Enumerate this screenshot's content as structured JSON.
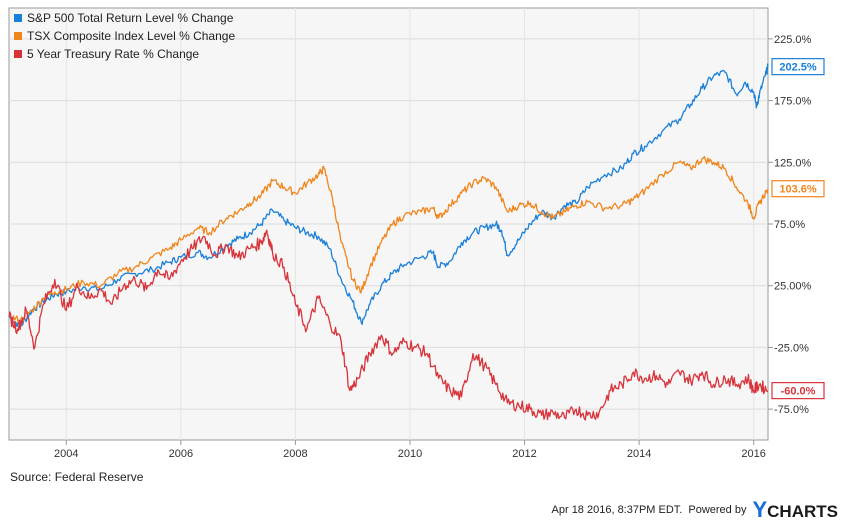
{
  "chart_data": {
    "type": "line",
    "title": "",
    "xlabel": "",
    "ylabel": "",
    "x_ticks": [
      "2004",
      "2006",
      "2008",
      "2010",
      "2012",
      "2014",
      "2016"
    ],
    "x_tick_values": [
      2004,
      2006,
      2008,
      2010,
      2012,
      2014,
      2016
    ],
    "xlim": [
      2003.0,
      2016.25
    ],
    "ylim": [
      -100,
      250
    ],
    "y_ticks": [
      "225.0%",
      "175.0%",
      "125.0%",
      "75.0%",
      "25.00%",
      "-25.0%",
      "-75.0%"
    ],
    "y_tick_values": [
      225,
      175,
      125,
      75,
      25,
      -25,
      -75
    ],
    "grid": true,
    "legend_position": "top-left",
    "series": [
      {
        "name": "S&P 500 Total Return Level % Change",
        "color": "#1a80d8",
        "end_label": "202.5%",
        "points": [
          [
            2003.0,
            0
          ],
          [
            2003.2,
            -8
          ],
          [
            2003.4,
            5
          ],
          [
            2003.6,
            12
          ],
          [
            2003.8,
            18
          ],
          [
            2004.0,
            20
          ],
          [
            2004.3,
            24
          ],
          [
            2004.6,
            22
          ],
          [
            2004.9,
            30
          ],
          [
            2005.2,
            35
          ],
          [
            2005.5,
            38
          ],
          [
            2005.8,
            44
          ],
          [
            2006.0,
            48
          ],
          [
            2006.3,
            52
          ],
          [
            2006.5,
            48
          ],
          [
            2006.8,
            58
          ],
          [
            2007.0,
            63
          ],
          [
            2007.2,
            68
          ],
          [
            2007.4,
            75
          ],
          [
            2007.6,
            86
          ],
          [
            2007.8,
            78
          ],
          [
            2008.0,
            72
          ],
          [
            2008.2,
            68
          ],
          [
            2008.4,
            65
          ],
          [
            2008.6,
            55
          ],
          [
            2008.8,
            30
          ],
          [
            2009.0,
            12
          ],
          [
            2009.15,
            -5
          ],
          [
            2009.3,
            10
          ],
          [
            2009.5,
            25
          ],
          [
            2009.7,
            35
          ],
          [
            2009.9,
            42
          ],
          [
            2010.2,
            48
          ],
          [
            2010.4,
            52
          ],
          [
            2010.5,
            40
          ],
          [
            2010.7,
            45
          ],
          [
            2010.9,
            60
          ],
          [
            2011.1,
            68
          ],
          [
            2011.3,
            72
          ],
          [
            2011.5,
            75
          ],
          [
            2011.6,
            70
          ],
          [
            2011.7,
            50
          ],
          [
            2011.9,
            62
          ],
          [
            2012.1,
            75
          ],
          [
            2012.3,
            85
          ],
          [
            2012.5,
            80
          ],
          [
            2012.7,
            90
          ],
          [
            2012.9,
            92
          ],
          [
            2013.1,
            105
          ],
          [
            2013.4,
            115
          ],
          [
            2013.7,
            120
          ],
          [
            2013.9,
            132
          ],
          [
            2014.1,
            138
          ],
          [
            2014.4,
            150
          ],
          [
            2014.7,
            160
          ],
          [
            2014.9,
            172
          ],
          [
            2015.1,
            185
          ],
          [
            2015.3,
            195
          ],
          [
            2015.5,
            198
          ],
          [
            2015.7,
            180
          ],
          [
            2015.85,
            190
          ],
          [
            2016.0,
            182
          ],
          [
            2016.05,
            170
          ],
          [
            2016.1,
            180
          ],
          [
            2016.2,
            195
          ],
          [
            2016.25,
            202.5
          ]
        ]
      },
      {
        "name": "TSX Composite Index Level % Change",
        "color": "#f0851c",
        "end_label": "103.6%",
        "points": [
          [
            2003.0,
            0
          ],
          [
            2003.2,
            -3
          ],
          [
            2003.4,
            5
          ],
          [
            2003.6,
            15
          ],
          [
            2003.8,
            20
          ],
          [
            2004.0,
            22
          ],
          [
            2004.3,
            28
          ],
          [
            2004.6,
            25
          ],
          [
            2004.9,
            35
          ],
          [
            2005.2,
            40
          ],
          [
            2005.5,
            48
          ],
          [
            2005.8,
            55
          ],
          [
            2006.0,
            62
          ],
          [
            2006.3,
            72
          ],
          [
            2006.5,
            68
          ],
          [
            2006.8,
            80
          ],
          [
            2007.0,
            85
          ],
          [
            2007.2,
            92
          ],
          [
            2007.4,
            98
          ],
          [
            2007.6,
            110
          ],
          [
            2007.8,
            105
          ],
          [
            2008.0,
            100
          ],
          [
            2008.2,
            108
          ],
          [
            2008.4,
            115
          ],
          [
            2008.5,
            120
          ],
          [
            2008.65,
            95
          ],
          [
            2008.8,
            60
          ],
          [
            2009.0,
            30
          ],
          [
            2009.15,
            20
          ],
          [
            2009.3,
            40
          ],
          [
            2009.5,
            60
          ],
          [
            2009.7,
            75
          ],
          [
            2009.9,
            82
          ],
          [
            2010.2,
            85
          ],
          [
            2010.4,
            88
          ],
          [
            2010.5,
            80
          ],
          [
            2010.7,
            90
          ],
          [
            2010.9,
            100
          ],
          [
            2011.1,
            108
          ],
          [
            2011.3,
            112
          ],
          [
            2011.5,
            105
          ],
          [
            2011.7,
            85
          ],
          [
            2011.9,
            90
          ],
          [
            2012.1,
            92
          ],
          [
            2012.3,
            85
          ],
          [
            2012.5,
            80
          ],
          [
            2012.7,
            85
          ],
          [
            2012.9,
            90
          ],
          [
            2013.1,
            93
          ],
          [
            2013.4,
            88
          ],
          [
            2013.7,
            90
          ],
          [
            2013.9,
            95
          ],
          [
            2014.1,
            102
          ],
          [
            2014.4,
            115
          ],
          [
            2014.7,
            125
          ],
          [
            2014.9,
            120
          ],
          [
            2015.1,
            128
          ],
          [
            2015.3,
            125
          ],
          [
            2015.5,
            120
          ],
          [
            2015.7,
            105
          ],
          [
            2015.9,
            92
          ],
          [
            2016.0,
            80
          ],
          [
            2016.1,
            92
          ],
          [
            2016.25,
            103.6
          ]
        ]
      },
      {
        "name": "5 Year Treasury Rate % Change",
        "color": "#d8333a",
        "end_label": "-60.0%",
        "points": [
          [
            2003.0,
            0
          ],
          [
            2003.15,
            -10
          ],
          [
            2003.3,
            5
          ],
          [
            2003.45,
            -25
          ],
          [
            2003.6,
            10
          ],
          [
            2003.8,
            30
          ],
          [
            2004.0,
            5
          ],
          [
            2004.2,
            25
          ],
          [
            2004.4,
            15
          ],
          [
            2004.6,
            22
          ],
          [
            2004.8,
            10
          ],
          [
            2005.0,
            25
          ],
          [
            2005.2,
            30
          ],
          [
            2005.4,
            22
          ],
          [
            2005.6,
            38
          ],
          [
            2005.8,
            30
          ],
          [
            2006.0,
            45
          ],
          [
            2006.2,
            55
          ],
          [
            2006.4,
            65
          ],
          [
            2006.6,
            50
          ],
          [
            2006.8,
            58
          ],
          [
            2007.0,
            48
          ],
          [
            2007.2,
            55
          ],
          [
            2007.4,
            60
          ],
          [
            2007.5,
            70
          ],
          [
            2007.6,
            52
          ],
          [
            2007.8,
            40
          ],
          [
            2008.0,
            10
          ],
          [
            2008.2,
            -10
          ],
          [
            2008.4,
            15
          ],
          [
            2008.6,
            -5
          ],
          [
            2008.8,
            -20
          ],
          [
            2008.95,
            -60
          ],
          [
            2009.1,
            -50
          ],
          [
            2009.3,
            -30
          ],
          [
            2009.5,
            -15
          ],
          [
            2009.7,
            -30
          ],
          [
            2009.9,
            -20
          ],
          [
            2010.1,
            -25
          ],
          [
            2010.3,
            -30
          ],
          [
            2010.5,
            -50
          ],
          [
            2010.7,
            -60
          ],
          [
            2010.9,
            -65
          ],
          [
            2011.1,
            -30
          ],
          [
            2011.3,
            -40
          ],
          [
            2011.5,
            -55
          ],
          [
            2011.7,
            -70
          ],
          [
            2011.9,
            -72
          ],
          [
            2012.1,
            -75
          ],
          [
            2012.3,
            -80
          ],
          [
            2012.5,
            -78
          ],
          [
            2012.7,
            -82
          ],
          [
            2012.9,
            -75
          ],
          [
            2013.1,
            -80
          ],
          [
            2013.3,
            -78
          ],
          [
            2013.5,
            -60
          ],
          [
            2013.7,
            -55
          ],
          [
            2013.9,
            -45
          ],
          [
            2014.1,
            -50
          ],
          [
            2014.3,
            -48
          ],
          [
            2014.5,
            -55
          ],
          [
            2014.7,
            -45
          ],
          [
            2014.9,
            -52
          ],
          [
            2015.1,
            -45
          ],
          [
            2015.3,
            -55
          ],
          [
            2015.5,
            -50
          ],
          [
            2015.7,
            -55
          ],
          [
            2015.9,
            -50
          ],
          [
            2016.0,
            -60
          ],
          [
            2016.1,
            -55
          ],
          [
            2016.25,
            -60
          ]
        ]
      }
    ]
  },
  "footer": {
    "source": "Source: Federal Reserve",
    "timestamp": "Apr 18 2016, 8:37PM EDT.",
    "powered_by": "Powered by",
    "logo_y": "Y",
    "logo_rest": "CHARTS"
  }
}
